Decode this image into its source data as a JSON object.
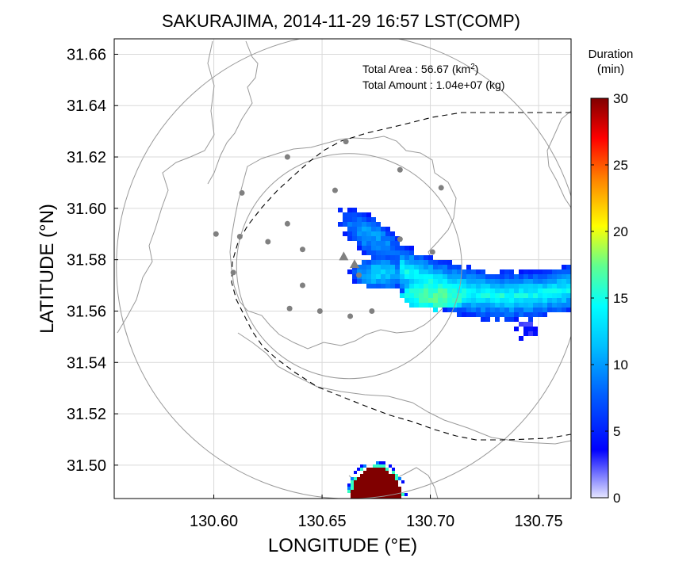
{
  "chart_data": {
    "type": "heatmap",
    "title": "SAKURAJIMA, 2014-11-29 16:57 LST(COMP)",
    "xlabel": "LONGITUDE (°E)",
    "ylabel": "LATITUDE (°N)",
    "xlim": [
      130.554,
      130.765
    ],
    "ylim": [
      31.487,
      31.666
    ],
    "x_ticks": [
      130.6,
      130.65,
      130.7,
      130.75
    ],
    "x_tick_labels": [
      "130.60",
      "130.65",
      "130.70",
      "130.75"
    ],
    "y_ticks": [
      31.5,
      31.52,
      31.54,
      31.56,
      31.58,
      31.6,
      31.62,
      31.64,
      31.66
    ],
    "y_tick_labels": [
      "31.50",
      "31.52",
      "31.54",
      "31.56",
      "31.58",
      "31.60",
      "31.62",
      "31.64",
      "31.66"
    ],
    "grid": true,
    "annotations": {
      "total_area_label": "Total Area   : 56.67 (km",
      "total_area_sup": "2",
      "total_area_close": ")",
      "total_amount_label": "Total Amount : 1.04e+07 (kg)"
    },
    "colorbar": {
      "title_line1": "Duration",
      "title_line2": "(min)",
      "range": [
        0,
        30
      ],
      "ticks": [
        0,
        5,
        10,
        15,
        20,
        25,
        30
      ],
      "tick_labels": [
        "0",
        "5",
        "10",
        "15",
        "20",
        "25",
        "30"
      ],
      "colors": [
        "#e6e6ff",
        "#0000ff",
        "#00a0ff",
        "#00ffff",
        "#80ff80",
        "#ffff00",
        "#ff8000",
        "#ff0000",
        "#800000"
      ]
    },
    "range_circles": [
      {
        "center": [
          130.6625,
          31.5775
        ],
        "radius_lon": 0.052
      },
      {
        "center": [
          130.6625,
          31.5775
        ],
        "radius_lon": 0.1075
      }
    ],
    "stations": [
      [
        130.661,
        31.626
      ],
      [
        130.634,
        31.62
      ],
      [
        130.686,
        31.615
      ],
      [
        130.656,
        31.607
      ],
      [
        130.705,
        31.608
      ],
      [
        130.613,
        31.606
      ],
      [
        130.601,
        31.59
      ],
      [
        130.612,
        31.589
      ],
      [
        130.634,
        31.594
      ],
      [
        130.625,
        31.587
      ],
      [
        130.641,
        31.584
      ],
      [
        130.609,
        31.575
      ],
      [
        130.641,
        31.57
      ],
      [
        130.635,
        31.561
      ],
      [
        130.649,
        31.56
      ],
      [
        130.663,
        31.558
      ],
      [
        130.673,
        31.56
      ],
      [
        130.686,
        31.588
      ],
      [
        130.701,
        31.583
      ],
      [
        130.667,
        31.574
      ]
    ],
    "vents": [
      [
        130.66,
        31.581
      ],
      [
        130.665,
        31.578
      ]
    ],
    "plume": {
      "axis_start": [
        130.663,
        31.6
      ],
      "axis_end": [
        130.765,
        31.568
      ],
      "peak": [
        130.703,
        31.566
      ],
      "peak_value": 17,
      "core_value": 13,
      "edge_value": 5
    },
    "dense_patch": {
      "center": [
        130.675,
        31.489
      ],
      "value": 30
    }
  }
}
